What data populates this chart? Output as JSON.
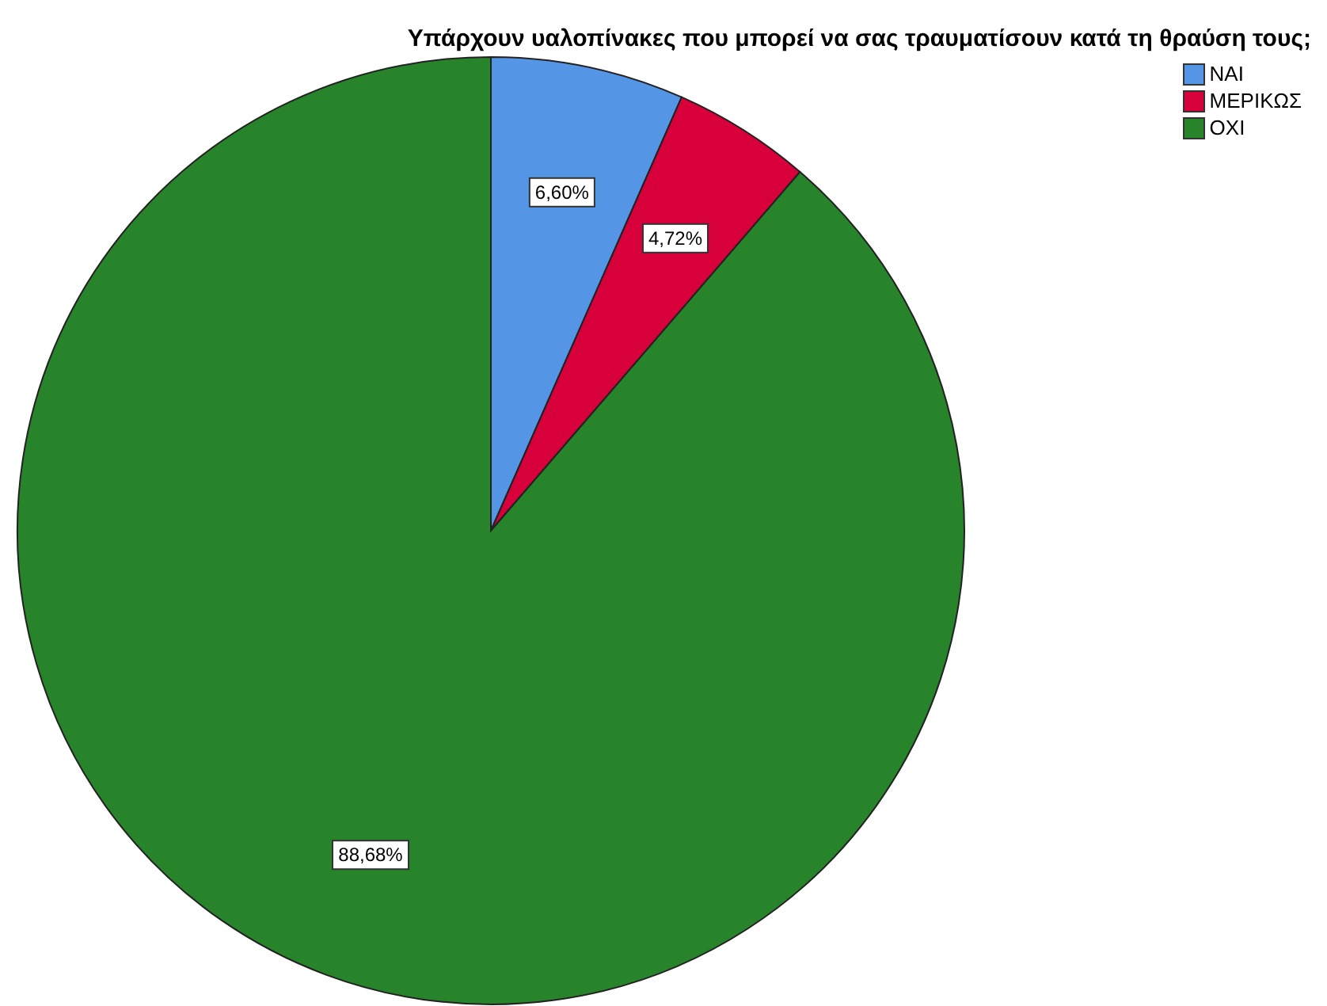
{
  "chart_data": {
    "type": "pie",
    "title": "Υπάρχουν υαλοπίνακες που μπορεί να σας τραυματίσουν κατά τη θραύση τους;",
    "categories": [
      "ΝΑΙ",
      "ΜΕΡΙΚΩΣ",
      "ΟΧΙ"
    ],
    "values": [
      6.6,
      4.72,
      88.68
    ],
    "colors": [
      "#5595e5",
      "#d8003b",
      "#27842a"
    ],
    "value_labels": [
      "6,60%",
      "4,72%",
      "88,68%"
    ],
    "legend": "top right"
  }
}
